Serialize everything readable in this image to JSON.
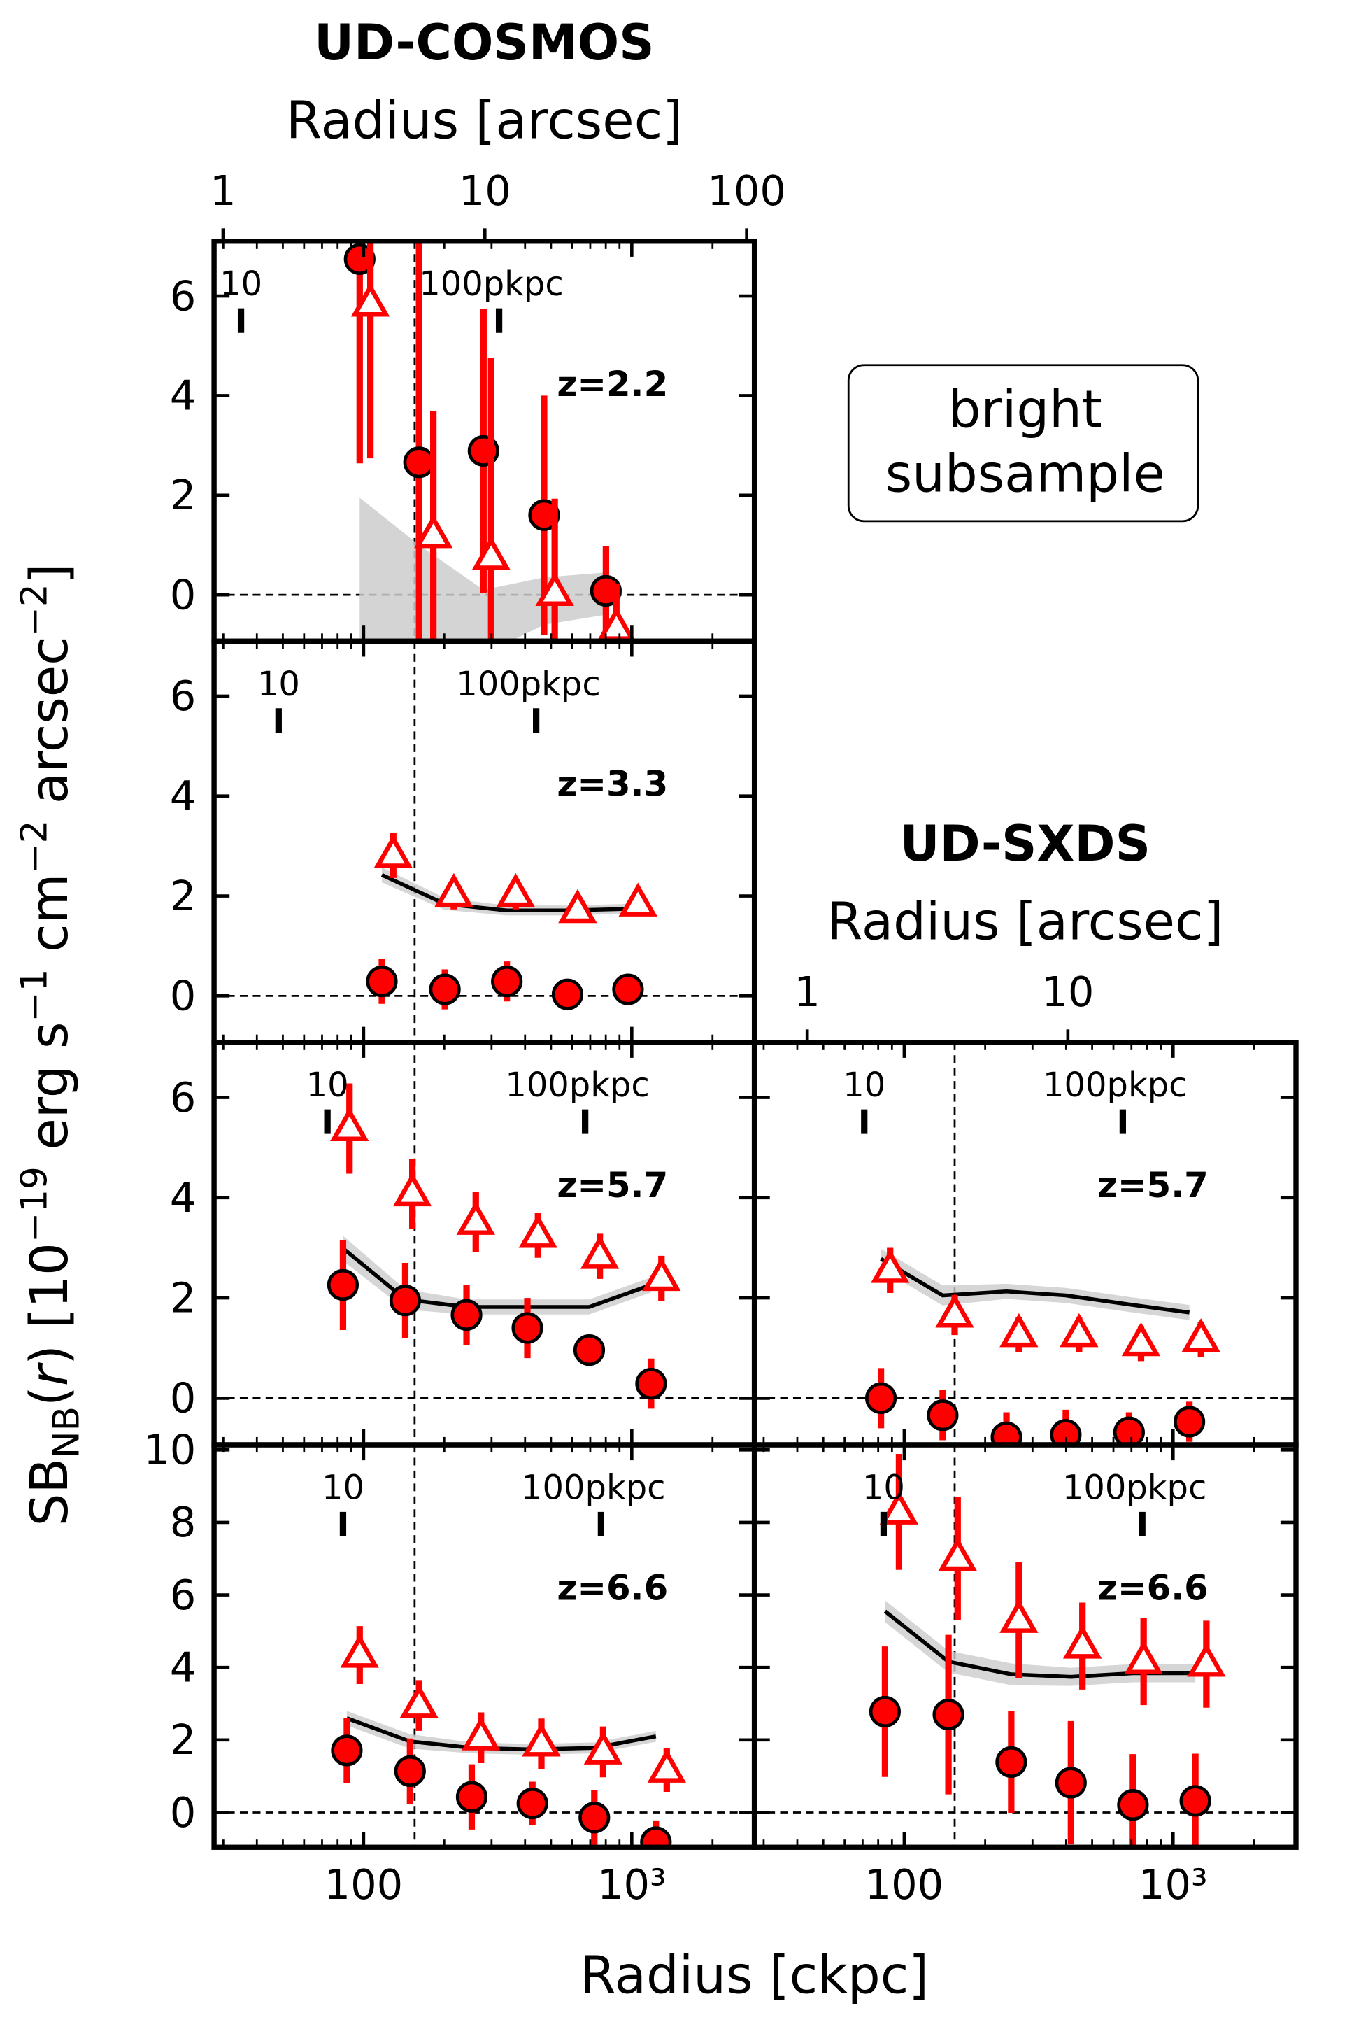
{
  "figure": {
    "xlabel": "Radius [ckpc]",
    "ylabel": [
      {
        "text": "SB"
      },
      {
        "text": "NB",
        "style": "sub"
      },
      {
        "text": "("
      },
      {
        "text": "r",
        "style": "italic"
      },
      {
        "text": ") [10"
      },
      {
        "text": "−19",
        "style": "sup"
      },
      {
        "text": " erg s"
      },
      {
        "text": "−1",
        "style": "sup"
      },
      {
        "text": " cm"
      },
      {
        "text": "−2",
        "style": "sup"
      },
      {
        "text": " arcsec"
      },
      {
        "text": "−2",
        "style": "sup"
      },
      {
        "text": "]"
      }
    ],
    "note": [
      "bright",
      "subsample"
    ]
  },
  "x_axis": {
    "log": true,
    "xlim": [
      27.7,
      2865
    ],
    "xticks": [
      100,
      {
        "value": 1000,
        "label": "10³"
      }
    ],
    "xminor": [
      30,
      40,
      50,
      60,
      70,
      80,
      90,
      200,
      300,
      400,
      500,
      600,
      700,
      800,
      900,
      2000
    ]
  },
  "chart_data": [
    {
      "type": "scatter",
      "title": "UD-COSMOS",
      "x2label": "Radius [arcsec]",
      "x2lim": [
        0.924,
        107
      ],
      "x2ticks": [
        1,
        10,
        100
      ],
      "label": "z=2.2",
      "ylim": [
        -0.93,
        7.1
      ],
      "yticks": [
        0,
        2,
        4,
        6
      ],
      "ylabels": true,
      "xlabels": false,
      "pkpc_ticks": [
        {
          "value": 34.9,
          "label": "10"
        },
        {
          "value": 320,
          "label": "100pkpc"
        }
      ],
      "vline": 155,
      "hline": 0,
      "series": [
        {
          "style": "area",
          "color": "#cccccc",
          "x": [
            96.7,
            161,
            280,
            471,
            801
          ],
          "upper": [
            1.95,
            1.0,
            0.1,
            0.35,
            0.45
          ],
          "lower": [
            -1.5,
            -1.5,
            -1.2,
            -0.6,
            -0.4
          ]
        },
        {
          "style": "circle",
          "color": "#ff0000",
          "x": [
            96.7,
            161,
            280,
            471,
            801
          ],
          "values": [
            6.74,
            2.66,
            2.89,
            1.6,
            0.08
          ],
          "errors": [
            4.1,
            7.0,
            2.85,
            2.4,
            0.9
          ]
        },
        {
          "style": "triangle",
          "color": "#ff0000",
          "x": [
            106,
            182,
            299,
            516,
            876
          ],
          "values": [
            5.84,
            1.19,
            0.75,
            0.03,
            -0.67
          ],
          "errors": [
            3.1,
            2.5,
            4.0,
            1.9,
            0.9
          ]
        }
      ]
    },
    {
      "type": "scatter",
      "label": "z=3.3",
      "ylim": [
        -0.93,
        7.1
      ],
      "yticks": [
        0,
        2,
        4,
        6
      ],
      "ylabels": true,
      "xlabels": false,
      "pkpc_ticks": [
        {
          "value": 48.2,
          "label": "10"
        },
        {
          "value": 440,
          "label": "100pkpc"
        }
      ],
      "vline": 155,
      "hline": 0,
      "series": [
        {
          "style": "line",
          "color": "#000000",
          "band": "#cccccc",
          "x": [
            117,
            201,
            342,
            576,
            968
          ],
          "values": [
            2.42,
            1.84,
            1.71,
            1.71,
            1.74
          ],
          "errors": [
            0.15,
            0.12,
            0.1,
            0.1,
            0.1
          ]
        },
        {
          "style": "circle",
          "color": "#ff0000",
          "x": [
            117,
            201,
            342,
            576,
            968
          ],
          "values": [
            0.29,
            0.13,
            0.29,
            0.03,
            0.13
          ],
          "errors": [
            0.45,
            0.4,
            0.4,
            0.3,
            0.3
          ]
        },
        {
          "style": "triangle",
          "color": "#ff0000",
          "x": [
            129,
            217,
            369,
            628,
            1055
          ],
          "values": [
            2.81,
            2.03,
            2.03,
            1.71,
            1.84
          ],
          "errors": [
            0.45,
            0.3,
            0.3,
            0.2,
            0.2
          ]
        }
      ]
    },
    {
      "type": "scatter",
      "label": "z=5.7",
      "ylim": [
        -0.93,
        7.1
      ],
      "yticks": [
        0,
        2,
        4,
        6
      ],
      "ylabels": true,
      "xlabels": false,
      "pkpc_ticks": [
        {
          "value": 73.3,
          "label": "10"
        },
        {
          "value": 670,
          "label": "100pkpc"
        }
      ],
      "vline": 155,
      "hline": 0,
      "series": [
        {
          "style": "line",
          "color": "#000000",
          "band": "#cccccc",
          "x": [
            83.8,
            143,
            242,
            408,
            694,
            1180
          ],
          "values": [
            2.99,
            1.97,
            1.82,
            1.82,
            1.82,
            2.26
          ],
          "errors": [
            0.25,
            0.2,
            0.15,
            0.15,
            0.15,
            0.15
          ]
        },
        {
          "style": "circle",
          "color": "#ff0000",
          "x": [
            83.8,
            143,
            242,
            408,
            694,
            1180
          ],
          "values": [
            2.26,
            1.95,
            1.66,
            1.4,
            0.96,
            0.29
          ],
          "errors": [
            0.9,
            0.75,
            0.6,
            0.6,
            0.3,
            0.5
          ]
        },
        {
          "style": "triangle",
          "color": "#ff0000",
          "x": [
            88.6,
            152,
            262,
            447,
            760,
            1290
          ],
          "values": [
            5.38,
            4.08,
            3.51,
            3.25,
            2.83,
            2.39
          ],
          "errors": [
            0.9,
            0.7,
            0.6,
            0.45,
            0.45,
            0.45
          ]
        }
      ]
    },
    {
      "type": "scatter",
      "title": "UD-SXDS",
      "x2label": "Radius [arcsec]",
      "x2lim": [
        0.627,
        75
      ],
      "x2ticks": [
        1,
        10
      ],
      "label": "z=5.7",
      "ylim": [
        -0.93,
        7.1
      ],
      "yticks": [
        0,
        2,
        4,
        6
      ],
      "ylabels": false,
      "xlabels": false,
      "pkpc_ticks": [
        {
          "value": 71,
          "label": "10"
        },
        {
          "value": 650,
          "label": "100pkpc"
        }
      ],
      "vline": 154,
      "hline": 0,
      "series": [
        {
          "style": "line",
          "color": "#000000",
          "band": "#cccccc",
          "x": [
            81.9,
            139,
            240,
            399,
            686,
            1150
          ],
          "values": [
            2.78,
            2.05,
            2.13,
            2.05,
            1.87,
            1.71
          ],
          "errors": [
            0.2,
            0.2,
            0.15,
            0.15,
            0.15,
            0.15
          ]
        },
        {
          "style": "circle",
          "color": "#ff0000",
          "x": [
            81.9,
            139,
            240,
            399,
            686,
            1150
          ],
          "values": [
            0,
            -0.34,
            -0.78,
            -0.73,
            -0.68,
            -0.47
          ],
          "errors": [
            0.6,
            0.5,
            0.5,
            0.5,
            0.4,
            0.4
          ]
        },
        {
          "style": "triangle",
          "color": "#ff0000",
          "x": [
            88.6,
            154,
            267,
            447,
            760,
            1270
          ],
          "values": [
            2.55,
            1.66,
            1.27,
            1.27,
            1.09,
            1.17
          ],
          "errors": [
            0.45,
            0.4,
            0.35,
            0.35,
            0.35,
            0.35
          ]
        }
      ]
    },
    {
      "type": "scatter",
      "label": "z=6.6",
      "ylim": [
        -0.96,
        10.14
      ],
      "yticks": [
        0,
        2,
        4,
        6,
        8,
        10
      ],
      "ylabels": true,
      "xlabels": true,
      "pkpc_ticks": [
        {
          "value": 83.8,
          "label": "10"
        },
        {
          "value": 768,
          "label": "100pkpc"
        }
      ],
      "vline": 155,
      "hline": 0,
      "series": [
        {
          "style": "line",
          "color": "#000000",
          "band": "#cccccc",
          "x": [
            86.6,
            149,
            253,
            426,
            725,
            1230
          ],
          "values": [
            2.6,
            1.96,
            1.78,
            1.74,
            1.78,
            2.1
          ],
          "errors": [
            0.2,
            0.2,
            0.15,
            0.15,
            0.15,
            0.15
          ]
        },
        {
          "style": "circle",
          "color": "#ff0000",
          "x": [
            86.6,
            149,
            253,
            426,
            725,
            1230
          ],
          "values": [
            1.71,
            1.14,
            0.43,
            0.25,
            -0.14,
            -0.82
          ],
          "errors": [
            0.9,
            0.9,
            0.9,
            0.6,
            0.75,
            0.6
          ]
        },
        {
          "style": "triangle",
          "color": "#ff0000",
          "x": [
            96.7,
            161,
            274,
            460,
            782,
            1350
          ],
          "values": [
            4.34,
            2.95,
            2.06,
            1.89,
            1.67,
            1.17
          ],
          "errors": [
            0.8,
            0.7,
            0.7,
            0.7,
            0.7,
            0.6
          ]
        }
      ]
    },
    {
      "type": "scatter",
      "label": "z=6.6",
      "ylim": [
        -0.96,
        10.14
      ],
      "yticks": [
        0,
        2,
        4,
        6,
        8,
        10
      ],
      "ylabels": false,
      "xlabels": true,
      "pkpc_ticks": [
        {
          "value": 83.8,
          "label": "10"
        },
        {
          "value": 768,
          "label": "100pkpc"
        }
      ],
      "vline": 154,
      "hline": 0,
      "series": [
        {
          "style": "line",
          "color": "#000000",
          "band": "#cccccc",
          "x": [
            84.8,
            146,
            250,
            417,
            709,
            1210
          ],
          "values": [
            5.55,
            4.16,
            3.81,
            3.74,
            3.84,
            3.84
          ],
          "errors": [
            0.3,
            0.3,
            0.3,
            0.25,
            0.25,
            0.25
          ]
        },
        {
          "style": "circle",
          "color": "#ff0000",
          "x": [
            84.8,
            146,
            250,
            417,
            709,
            1210
          ],
          "values": [
            2.78,
            2.7,
            1.39,
            0.82,
            0.21,
            0.32
          ],
          "errors": [
            1.8,
            2.2,
            1.4,
            1.7,
            1.4,
            1.3
          ]
        },
        {
          "style": "triangle",
          "color": "#ff0000",
          "x": [
            95.6,
            158,
            267,
            460,
            777,
            1330
          ],
          "values": [
            8.29,
            7.01,
            5.3,
            4.59,
            4.16,
            4.09
          ],
          "errors": [
            1.6,
            1.7,
            1.6,
            1.2,
            1.2,
            1.2
          ]
        }
      ]
    }
  ]
}
